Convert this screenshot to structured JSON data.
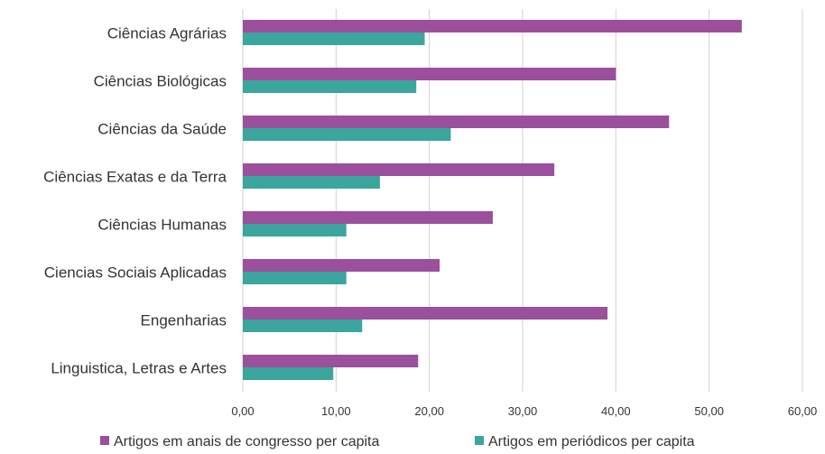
{
  "chart_data": {
    "type": "bar",
    "orientation": "horizontal",
    "categories": [
      "Ciências Agrárias",
      "Ciências Biológicas",
      "Ciências da Saúde",
      "Ciências Exatas e da Terra",
      "Ciências Humanas",
      "Ciencias Sociais Aplicadas",
      "Engenharias",
      "Linguistica, Letras e Artes"
    ],
    "series": [
      {
        "name": "Artigos em anais de congresso per capita",
        "color": "#9b4f9c",
        "values": [
          53.5,
          40.0,
          45.7,
          33.4,
          26.8,
          21.1,
          39.1,
          18.8
        ]
      },
      {
        "name": "Artigos em periódicos per capita",
        "color": "#3aa69e",
        "values": [
          19.5,
          18.6,
          22.3,
          14.7,
          11.1,
          11.1,
          12.8,
          9.7
        ]
      }
    ],
    "xlim": [
      0,
      60
    ],
    "ticks": [
      "0,00",
      "10,00",
      "20,00",
      "30,00",
      "40,00",
      "50,00",
      "60,00"
    ],
    "grid": true,
    "legend_position": "bottom"
  }
}
